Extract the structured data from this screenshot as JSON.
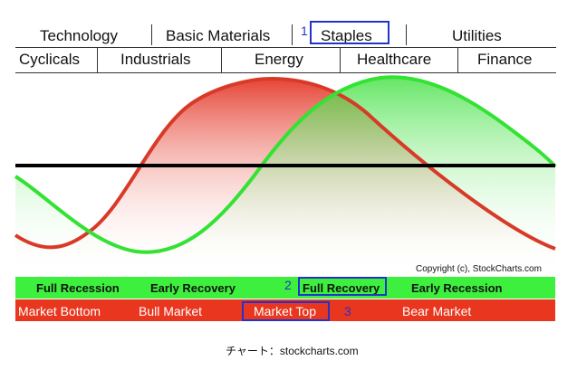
{
  "sectors": {
    "row1": [
      "Technology",
      "Basic Materials",
      "Staples",
      "Utilities"
    ],
    "row2": [
      "Cyclicals",
      "Industrials",
      "Energy",
      "Healthcare",
      "Finance"
    ]
  },
  "stages": {
    "economy": [
      "Full Recession",
      "Early Recovery",
      "Full Recovery",
      "Early Recession"
    ],
    "market": [
      "Market Bottom",
      "Bull Market",
      "Market Top",
      "Bear Market"
    ]
  },
  "markers": [
    "1",
    "2",
    "3"
  ],
  "copyright": "Copyright (c), StockCharts.com",
  "caption": "チャート：stockcharts.com",
  "colors": {
    "market_curve": "#e23a2a",
    "economy_curve": "#33e233",
    "baseline": "#000000",
    "economy_band": "#3ef03e",
    "market_band": "#e8361f",
    "highlight_box": "#2233cc"
  }
}
